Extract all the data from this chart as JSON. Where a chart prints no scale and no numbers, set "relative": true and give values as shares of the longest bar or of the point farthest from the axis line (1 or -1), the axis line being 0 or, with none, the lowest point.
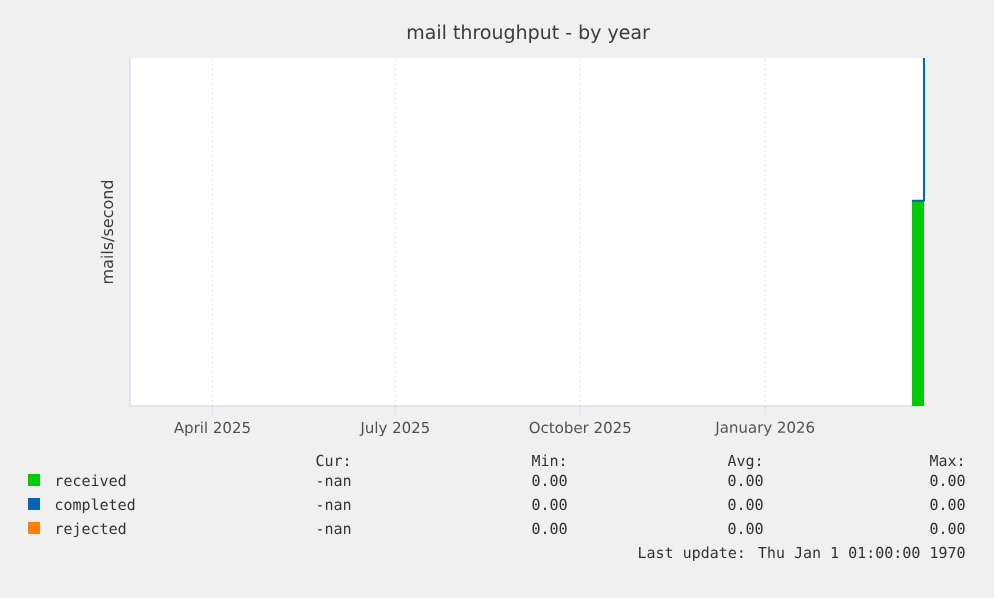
{
  "chart_data": {
    "type": "area",
    "title": "mail throughput - by year",
    "ylabel": "mails/second",
    "xlim": [
      "2025-02-19",
      "2026-03-22"
    ],
    "xticks": [
      {
        "value": "2025-04-01",
        "label": "April 2025"
      },
      {
        "value": "2025-07-01",
        "label": "July 2025"
      },
      {
        "value": "2025-10-01",
        "label": "October 2025"
      },
      {
        "value": "2026-01-01",
        "label": "January 2026"
      }
    ],
    "relative": true,
    "grid": "x",
    "legend": "bottom",
    "series": [
      {
        "name": "received",
        "color": "#00cc00",
        "x": [
          "2026-03-15",
          "2026-03-21"
        ],
        "values": [
          0.59,
          0.59
        ]
      },
      {
        "name": "completed",
        "type": "line",
        "color": "#0066b3",
        "x": [
          "2026-03-15",
          "2026-03-21",
          "2026-03-21"
        ],
        "values": [
          0.59,
          0.59,
          1.0
        ]
      },
      {
        "name": "rejected",
        "color": "#ff8000"
      }
    ],
    "annotations": [
      "Cur:",
      "Min:",
      "Avg:",
      "Max:",
      "-nan",
      "0.00",
      "0.00",
      "0.00",
      "-nan",
      "0.00",
      "0.00",
      "0.00",
      "-nan",
      "0.00",
      "0.00",
      "0.00",
      "Last update: Thu Jan  1 01:00:00 1970"
    ]
  }
}
